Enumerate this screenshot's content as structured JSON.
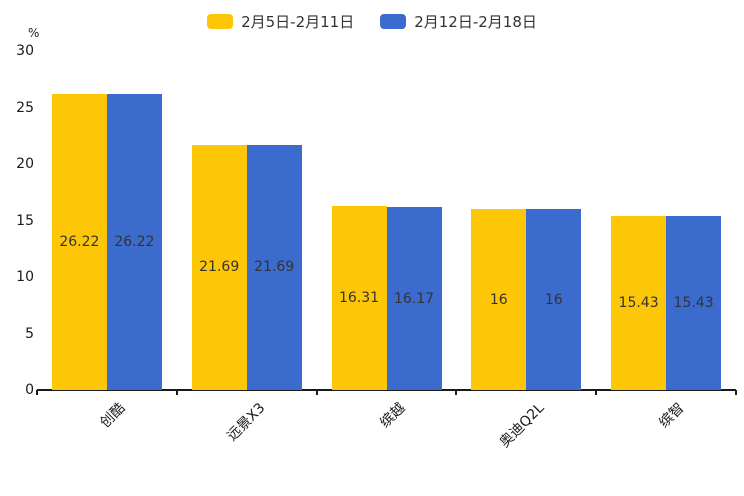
{
  "chart_data": {
    "type": "bar",
    "title": "",
    "categories": [
      "创酷",
      "远景X3",
      "缤越",
      "奥迪Q2L",
      "缤智"
    ],
    "series": [
      {
        "name": "2月5日-2月11日",
        "color": "#FDC607",
        "values": [
          26.22,
          21.69,
          16.31,
          16,
          15.43
        ]
      },
      {
        "name": "2月12日-2月18日",
        "color": "#3A6BCD",
        "values": [
          26.22,
          21.69,
          16.17,
          16,
          15.43
        ]
      }
    ],
    "xlabel": "",
    "ylabel": "%",
    "ylim": [
      0,
      30
    ],
    "yticks": [
      0,
      5,
      10,
      15,
      20,
      25,
      30
    ],
    "grid": false,
    "legend_position": "top-center",
    "value_labels_inside_bars": true,
    "category_label_rotation_deg": 45
  },
  "colors": {
    "background": "#ffffff",
    "axis": "#1a1a1a",
    "text": "#333333",
    "series1": "#FDC607",
    "series2": "#3A6BCD"
  }
}
